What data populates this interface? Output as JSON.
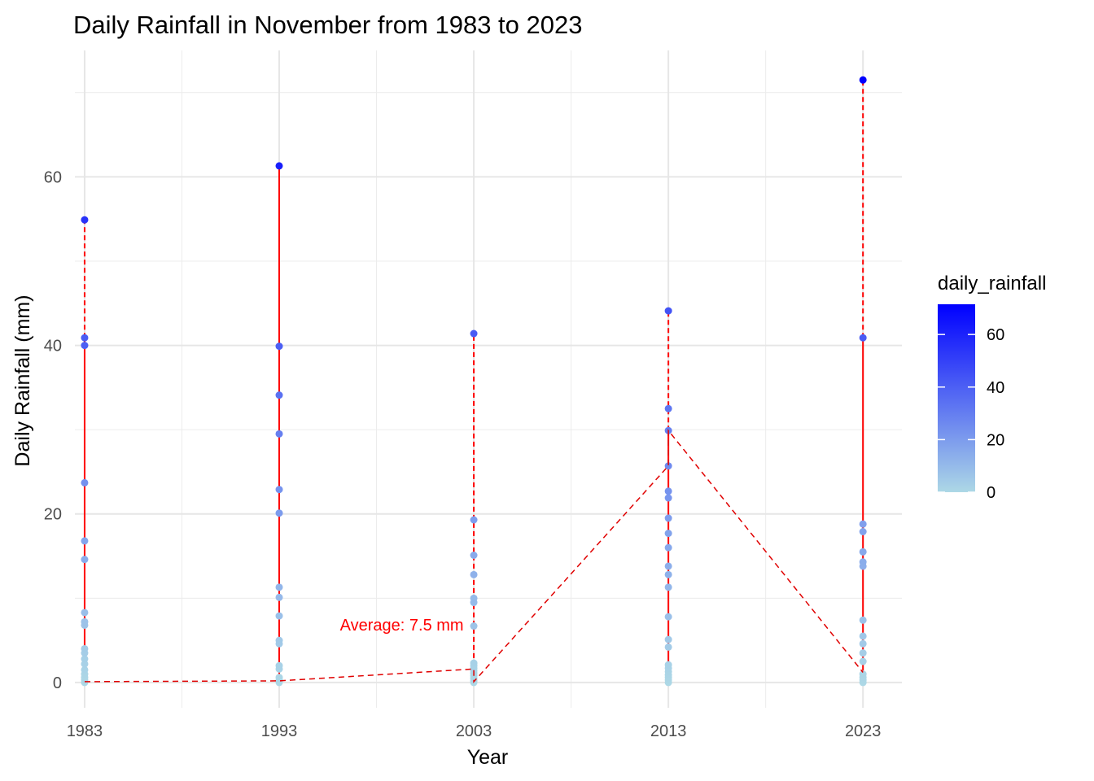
{
  "chart_data": {
    "type": "scatter",
    "title": "Daily Rainfall in November from 1983 to 2023",
    "xlabel": "Year",
    "ylabel": "Daily Rainfall (mm)",
    "x_ticks": [
      1983,
      1993,
      2003,
      2013,
      2023
    ],
    "y_ticks": [
      0,
      20,
      40,
      60
    ],
    "xlim": [
      1982.5,
      2025
    ],
    "ylim": [
      -3,
      75
    ],
    "grid": true,
    "legend": {
      "title": "daily_rainfall",
      "placement": "right",
      "low_color": "#add8e6",
      "high_color": "#0000ff",
      "min": 0,
      "max": 71.5,
      "ticks": [
        0,
        20,
        40,
        60
      ]
    },
    "series": [
      {
        "year": 1983,
        "values": [
          0,
          0.3,
          0.6,
          1.0,
          1.5,
          2.2,
          2.8,
          3.5,
          4.0,
          6.8,
          7.2,
          8.3,
          14.6,
          16.8,
          23.7,
          40.0,
          40.9,
          54.9
        ]
      },
      {
        "year": 1993,
        "values": [
          0,
          0.3,
          0.6,
          1.6,
          2.0,
          4.6,
          5.0,
          7.9,
          10.1,
          11.3,
          20.1,
          22.9,
          29.5,
          34.1,
          39.9,
          61.3
        ]
      },
      {
        "year": 2003,
        "values": [
          0,
          0.2,
          0.5,
          0.8,
          1.1,
          1.4,
          1.7,
          2.0,
          2.3,
          6.7,
          9.5,
          10.0,
          12.8,
          15.1,
          19.3,
          41.4
        ]
      },
      {
        "year": 2013,
        "values": [
          0,
          0.3,
          0.6,
          0.9,
          1.3,
          1.7,
          2.1,
          4.2,
          5.1,
          7.8,
          11.3,
          12.8,
          13.8,
          16.0,
          17.7,
          19.5,
          21.9,
          22.7,
          25.7,
          29.9,
          32.5,
          44.1
        ]
      },
      {
        "year": 2023,
        "values": [
          0,
          0.3,
          0.6,
          1.0,
          2.5,
          3.5,
          4.6,
          5.5,
          7.4,
          13.8,
          14.3,
          15.5,
          17.9,
          18.8,
          40.9,
          71.5
        ]
      }
    ],
    "range_segments": [
      {
        "year": 1983,
        "min": 0,
        "max": 54.9,
        "solid_to": 40.9
      },
      {
        "year": 1993,
        "min": 0,
        "max": 61.3,
        "solid_to": 61.3
      },
      {
        "year": 2003,
        "min": 0,
        "max": 41.4,
        "solid_to": 0
      },
      {
        "year": 2013,
        "min": 0,
        "max": 44.1,
        "solid_to": 29.9
      },
      {
        "year": 2023,
        "min": 0,
        "max": 71.5,
        "solid_to": 40.9
      }
    ],
    "dashed_trend": [
      {
        "year": 1983,
        "value": 0.1
      },
      {
        "year": 1993,
        "value": 0.2
      },
      {
        "year": 2003,
        "value": 1.6
      },
      {
        "year": 2003,
        "value": 0.1
      },
      {
        "year": 2013,
        "value": 25.7
      },
      {
        "year": 2013,
        "value": 29.9
      },
      {
        "year": 2023,
        "value": 1.2
      }
    ],
    "line_color": "#ff0000",
    "annotation": {
      "text": "Average: 7.5 mm",
      "year": 1999.3,
      "value": 7.5
    }
  }
}
